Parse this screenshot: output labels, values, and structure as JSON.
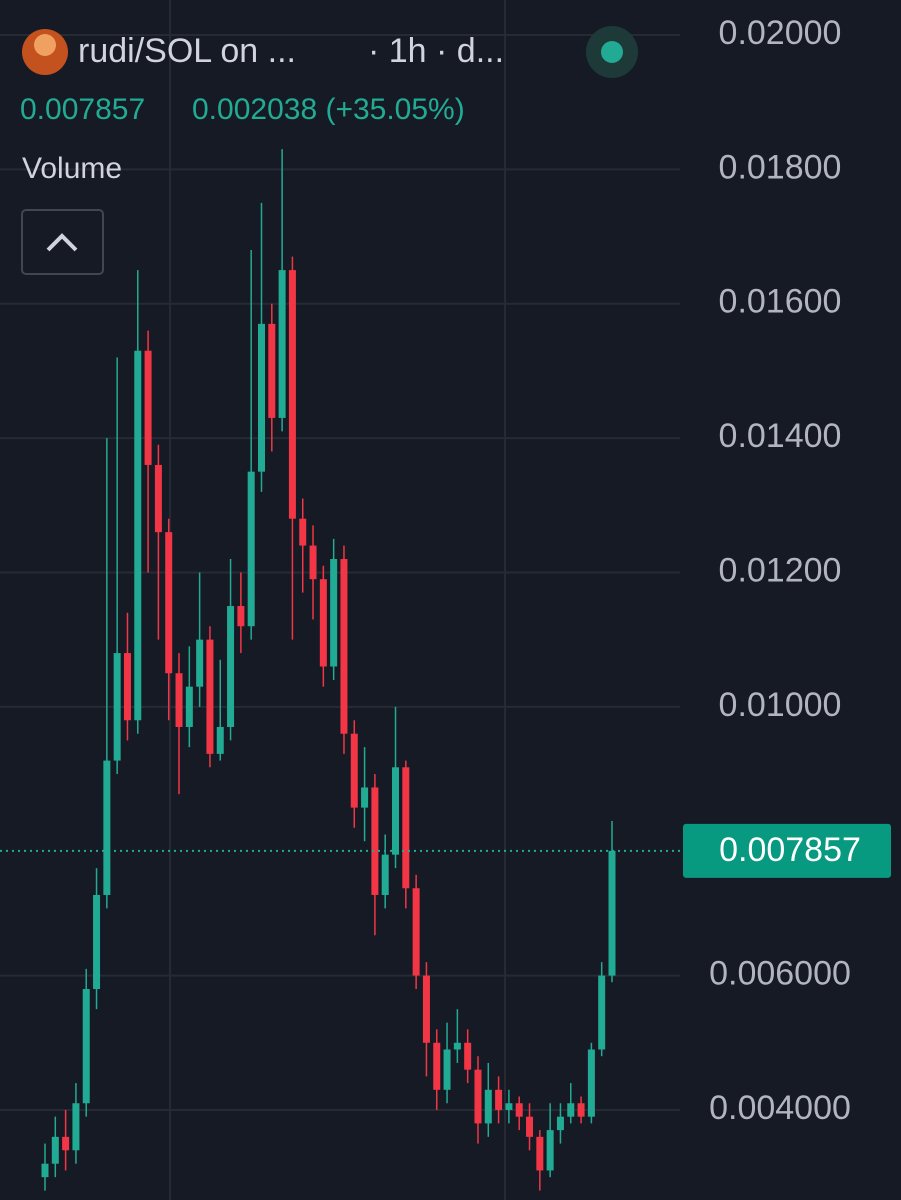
{
  "header": {
    "title": "rudi/SOL on ...",
    "interval": "· 1h · d...",
    "price": "0.007857",
    "change": "0.002038 (+35.05%)",
    "volume_label": "Volume"
  },
  "chart_data": {
    "type": "candlestick",
    "up_color": "#22ab94",
    "down_color": "#f23645",
    "open": [
      0.003,
      0.0032,
      0.0036,
      0.0034,
      0.0041,
      0.0058,
      0.0072,
      0.0092,
      0.0108,
      0.0098,
      0.0153,
      0.0136,
      0.0126,
      0.0105,
      0.0097,
      0.0103,
      0.011,
      0.0093,
      0.0097,
      0.0115,
      0.0112,
      0.0135,
      0.0157,
      0.0143,
      0.0165,
      0.0128,
      0.0124,
      0.0119,
      0.0106,
      0.0122,
      0.0096,
      0.0085,
      0.0088,
      0.0072,
      0.0078,
      0.0091,
      0.0073,
      0.006,
      0.005,
      0.0043,
      0.0049,
      0.005,
      0.0046,
      0.0038,
      0.0043,
      0.004,
      0.0041,
      0.0039,
      0.0036,
      0.0031,
      0.0037,
      0.0039,
      0.0041,
      0.0039,
      0.0049,
      0.006
    ],
    "high": [
      0.0035,
      0.0039,
      0.004,
      0.0044,
      0.0061,
      0.0076,
      0.014,
      0.0152,
      0.0114,
      0.0165,
      0.0156,
      0.0139,
      0.0128,
      0.0108,
      0.0109,
      0.012,
      0.0112,
      0.0107,
      0.0122,
      0.012,
      0.0168,
      0.0175,
      0.016,
      0.0183,
      0.0167,
      0.0131,
      0.0127,
      0.0121,
      0.0125,
      0.0124,
      0.0098,
      0.0094,
      0.009,
      0.0081,
      0.01,
      0.0092,
      0.0075,
      0.0062,
      0.0052,
      0.0053,
      0.0055,
      0.0052,
      0.0048,
      0.0047,
      0.0045,
      0.0043,
      0.0042,
      0.0041,
      0.0037,
      0.0041,
      0.0041,
      0.0044,
      0.0042,
      0.005,
      0.0062,
      0.0083
    ],
    "low": [
      0.0028,
      0.003,
      0.0031,
      0.0032,
      0.0039,
      0.0055,
      0.007,
      0.009,
      0.0095,
      0.0096,
      0.012,
      0.011,
      0.0098,
      0.0087,
      0.0094,
      0.01,
      0.0091,
      0.0092,
      0.0095,
      0.0108,
      0.011,
      0.0132,
      0.0138,
      0.0141,
      0.011,
      0.0117,
      0.0113,
      0.0103,
      0.0104,
      0.0093,
      0.0082,
      0.008,
      0.0066,
      0.007,
      0.0076,
      0.007,
      0.0058,
      0.0045,
      0.004,
      0.0041,
      0.0047,
      0.0044,
      0.0035,
      0.0036,
      0.0038,
      0.0038,
      0.0037,
      0.0034,
      0.0028,
      0.003,
      0.0035,
      0.0038,
      0.0038,
      0.0038,
      0.0048,
      0.0059
    ],
    "close": [
      0.0032,
      0.0036,
      0.0034,
      0.0041,
      0.0058,
      0.0072,
      0.0092,
      0.0108,
      0.0098,
      0.0153,
      0.0136,
      0.0126,
      0.0105,
      0.0097,
      0.0103,
      0.011,
      0.0093,
      0.0097,
      0.0115,
      0.0112,
      0.0135,
      0.0157,
      0.0143,
      0.0165,
      0.0128,
      0.0124,
      0.0119,
      0.0106,
      0.0122,
      0.0096,
      0.0085,
      0.0088,
      0.0072,
      0.0078,
      0.0091,
      0.0073,
      0.006,
      0.005,
      0.0043,
      0.0049,
      0.005,
      0.0046,
      0.0038,
      0.0043,
      0.004,
      0.0041,
      0.0039,
      0.0036,
      0.0031,
      0.0037,
      0.0039,
      0.0041,
      0.0039,
      0.0049,
      0.006,
      0.007857
    ],
    "last_price": 0.007857,
    "ylim": [
      0.00266,
      0.02052
    ],
    "yticks": [
      {
        "value": 0.02,
        "label": "0.02000"
      },
      {
        "value": 0.018,
        "label": "0.01800"
      },
      {
        "value": 0.016,
        "label": "0.01600"
      },
      {
        "value": 0.014,
        "label": "0.01400"
      },
      {
        "value": 0.012,
        "label": "0.01200"
      },
      {
        "value": 0.01,
        "label": "0.01000"
      },
      {
        "value": 0.006,
        "label": "0.006000"
      },
      {
        "value": 0.004,
        "label": "0.004000"
      }
    ],
    "grid": true
  }
}
